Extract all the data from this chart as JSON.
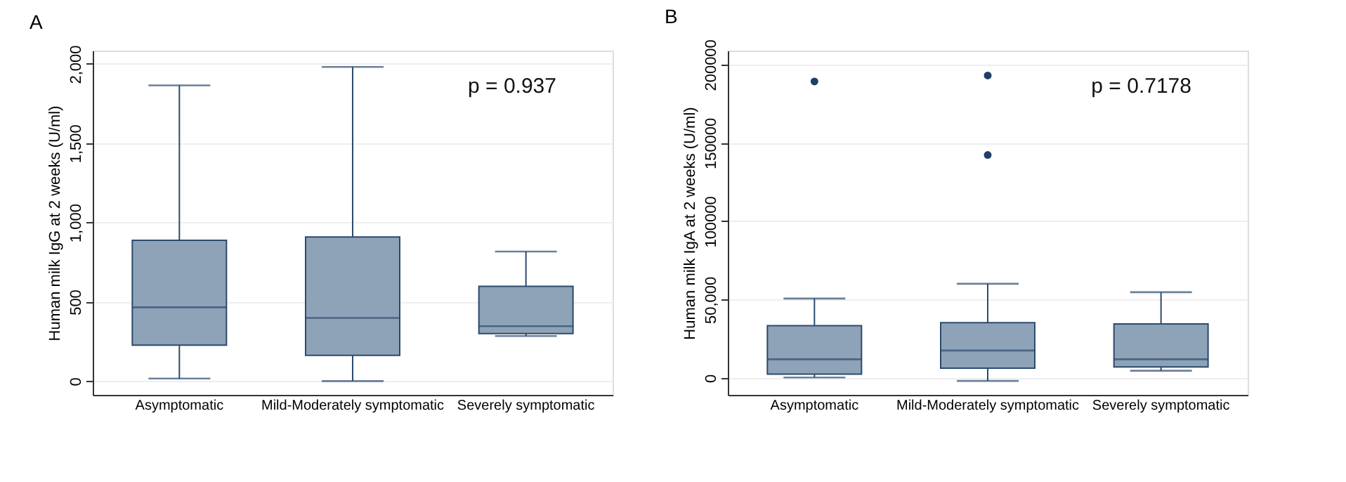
{
  "chart_data": [
    {
      "type": "box",
      "title": "A",
      "ylabel": "Human milk IgG at 2 weeks (U/ml)",
      "categories": [
        "Asymptomatic",
        "Mild-Moderately symptomatic",
        "Severely symptomatic"
      ],
      "ylim": [
        -87,
        2084
      ],
      "yticks": [
        0,
        500,
        {
          "value": 1000,
          "label": "1,000"
        },
        {
          "value": 1500,
          "label": "1,500"
        },
        {
          "value": 2000,
          "label": "2,000"
        }
      ],
      "grid": "y",
      "annotations": [
        "p = 0.937"
      ],
      "series": [
        {
          "color": "#8ea3b7",
          "boxes": [
            {
              "low": 16,
              "q1": 227,
              "median": 465,
              "q3": 888,
              "high": 1865
            },
            {
              "low": 0,
              "q1": 162,
              "median": 398,
              "q3": 909,
              "high": 1981
            },
            {
              "low": 284,
              "q1": 300,
              "median": 346,
              "q3": 598,
              "high": 817
            }
          ]
        }
      ]
    },
    {
      "type": "box",
      "title": "B",
      "ylabel": "Human milk IgA at 2 weeks (U/ml)",
      "categories": [
        "Asymptomatic",
        "Mild-Moderately symptomatic",
        "Severely symptomatic"
      ],
      "ylim": [
        -10800,
        208900
      ],
      "yticks": [
        0,
        {
          "value": 50000,
          "label": "50,000"
        },
        100000,
        150000,
        200000
      ],
      "grid": "y",
      "annotations": [
        "p = 0.7178"
      ],
      "series": [
        {
          "color": "#8ea3b7",
          "boxes": [
            {
              "low": 300,
              "q1": 2400,
              "median": 11900,
              "q3": 33400,
              "high": 50700,
              "outliers": [
                189200
              ]
            },
            {
              "low": -1900,
              "q1": 6200,
              "median": 17500,
              "q3": 35300,
              "high": 60100,
              "outliers": [
                193000,
                142300
              ]
            },
            {
              "low": 4600,
              "q1": 7000,
              "median": 11900,
              "q3": 34500,
              "high": 54700
            }
          ]
        }
      ]
    }
  ]
}
